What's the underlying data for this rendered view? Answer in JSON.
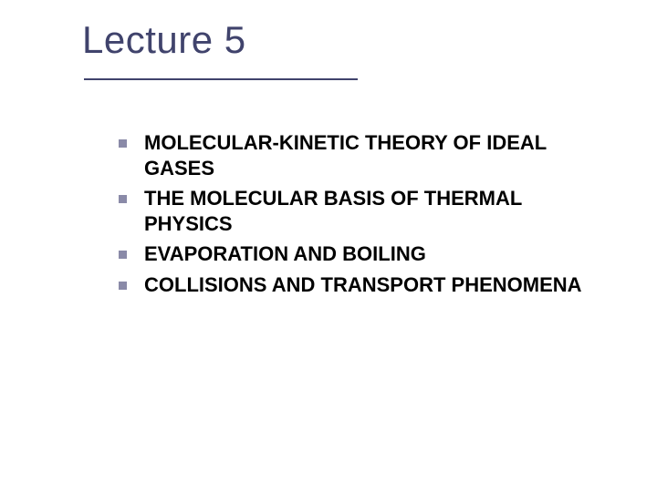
{
  "title": {
    "text": "Lecture 5",
    "color": "#40436c",
    "fontsize": 42,
    "underline_color": "#40436c",
    "underline_width": 300
  },
  "bullets": {
    "marker_color": "#8a8aa8",
    "marker_size": 9,
    "text_color": "#000000",
    "fontsize": 22,
    "font_weight": 700,
    "items": [
      "MOLECULAR-KINETIC THEORY OF IDEAL GASES",
      "THE MOLECULAR BASIS OF THERMAL PHYSICS",
      "EVAPORATION AND BOILING",
      "COLLISIONS AND TRANSPORT PHENOMENA"
    ]
  },
  "background_color": "#ffffff"
}
